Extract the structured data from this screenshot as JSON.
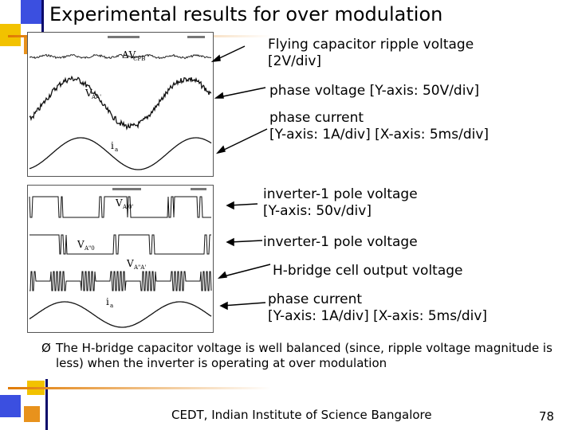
{
  "slide": {
    "title": "Experimental results for over modulation",
    "page_number": "78",
    "footer": "CEDT, Indian Institute of Science Bangalore",
    "accent_colors": {
      "blue": "#3b4fe0",
      "yellow": "#f2c200",
      "orange": "#e8921c",
      "navy": "#0a0a6a",
      "line_gradient_start": "#e07a00",
      "line_gradient_end": "#ffffff"
    }
  },
  "scope_top": {
    "labels": [
      {
        "line1": "Flying capacitor ripple voltage",
        "line2": "[2V/div]"
      },
      {
        "line1": "phase voltage [Y-axis: 50V/div]"
      },
      {
        "line1": "phase current",
        "line2": "[Y-axis: 1A/div] [X-axis: 5ms/div]"
      }
    ],
    "trace_labels": {
      "ripple": "ΔV",
      "ripple_sub": "CFB",
      "phase_v": "V",
      "phase_v_sub": "AA'",
      "current": "i",
      "current_sub": "a"
    }
  },
  "scope_bottom": {
    "labels": [
      {
        "line1": "inverter-1 pole voltage",
        "line2": "[Y-axis: 50v/div]"
      },
      {
        "line1": "inverter-1 pole voltage"
      },
      {
        "line1": "H-bridge cell output voltage"
      },
      {
        "line1": "phase current",
        "line2": "[Y-axis: 1A/div] [X-axis: 5ms/div]"
      }
    ],
    "trace_labels": {
      "pole1": "V",
      "pole1_sub": "A'0'",
      "pole2": "V",
      "pole2_sub": "A\"0",
      "hb": "V",
      "hb_sub": "A\"A'",
      "current": "i",
      "current_sub": "a"
    }
  },
  "bullet": {
    "mark": "Ø",
    "text": "The H-bridge capacitor voltage is well balanced (since, ripple voltage magnitude is less) when the inverter is operating at over modulation"
  }
}
